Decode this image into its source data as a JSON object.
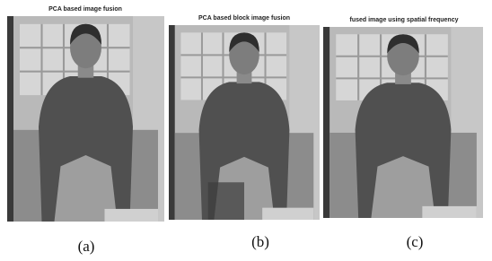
{
  "panels": [
    {
      "title": "PCA based image fusion",
      "caption": "(a)"
    },
    {
      "title": "PCA based block image fusion",
      "caption": "(b)"
    },
    {
      "title": "fused image using spatial frequency",
      "caption": "(c)"
    }
  ]
}
